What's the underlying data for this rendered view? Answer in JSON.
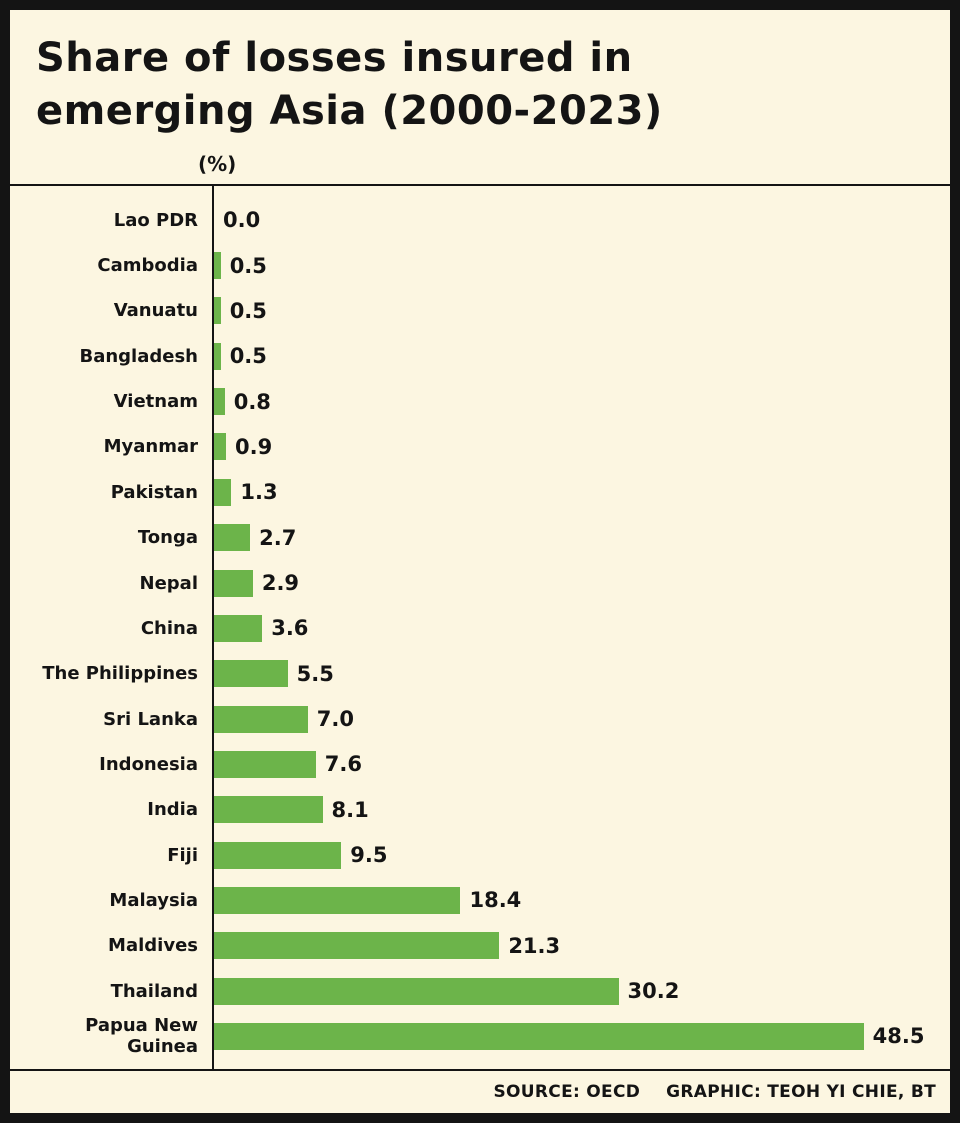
{
  "chart_data": {
    "type": "bar",
    "orientation": "horizontal",
    "title": "Share of losses insured in\nemerging Asia (2000-2023)",
    "unit_label": "(%)",
    "categories": [
      "Lao PDR",
      "Cambodia",
      "Vanuatu",
      "Bangladesh",
      "Vietnam",
      "Myanmar",
      "Pakistan",
      "Tonga",
      "Nepal",
      "China",
      "The Philippines",
      "Sri Lanka",
      "Indonesia",
      "India",
      "Fiji",
      "Malaysia",
      "Maldives",
      "Thailand",
      "Papua New Guinea"
    ],
    "values": [
      0.0,
      0.5,
      0.5,
      0.5,
      0.8,
      0.9,
      1.3,
      2.7,
      2.9,
      3.6,
      5.5,
      7.0,
      7.6,
      8.1,
      9.5,
      18.4,
      21.3,
      30.2,
      48.5
    ],
    "value_labels": [
      "0.0",
      "0.5",
      "0.5",
      "0.5",
      "0.8",
      "0.9",
      "1.3",
      "2.7",
      "2.9",
      "3.6",
      "5.5",
      "7.0",
      "7.6",
      "8.1",
      "9.5",
      "18.4",
      "21.3",
      "30.2",
      "48.5"
    ],
    "xlim": [
      0,
      50
    ],
    "grid": false,
    "legend": false,
    "bar_color": "#6cb44a",
    "background_color": "#fcf6e1",
    "border_color": "#141414"
  },
  "footer": {
    "source_label": "SOURCE: OECD",
    "credit_label": "GRAPHIC: TEOH YI CHIE, BT"
  }
}
